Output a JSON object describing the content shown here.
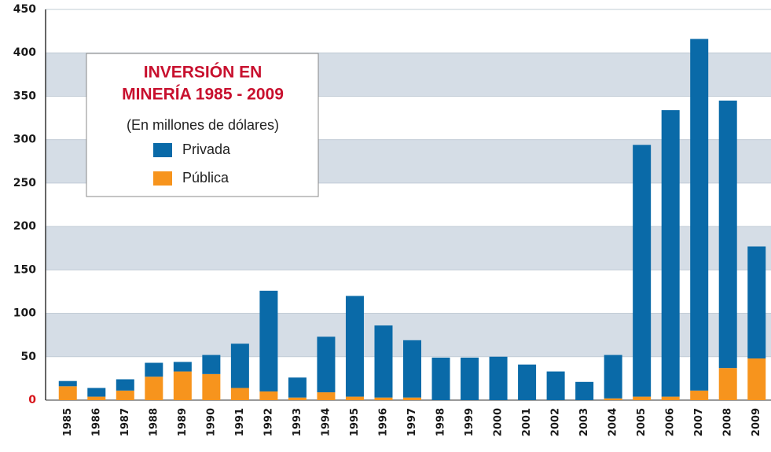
{
  "chart_data": {
    "type": "bar",
    "stacked": true,
    "title_lines": [
      "INVERSIÓN EN",
      "MINERÍA 1985 - 2009"
    ],
    "subtitle": "(En millones de dólares)",
    "categories": [
      "1985",
      "1986",
      "1987",
      "1988",
      "1989",
      "1990",
      "1991",
      "1992",
      "1993",
      "1994",
      "1995",
      "1996",
      "1997",
      "1998",
      "1999",
      "2000",
      "2001",
      "2002",
      "2003",
      "2004",
      "2005",
      "2006",
      "2007",
      "2008",
      "2009"
    ],
    "series": [
      {
        "name": "Pública",
        "color": "#f7941d",
        "values": [
          16,
          4,
          11,
          27,
          33,
          30,
          14,
          10,
          3,
          9,
          4,
          3,
          3,
          0,
          0,
          0,
          0,
          0,
          0,
          2,
          4,
          4,
          11,
          37,
          48
        ]
      },
      {
        "name": "Privada",
        "color": "#0a6aa8",
        "values": [
          6,
          10,
          13,
          16,
          11,
          22,
          51,
          116,
          23,
          64,
          116,
          83,
          66,
          49,
          49,
          50,
          41,
          33,
          21,
          50,
          290,
          330,
          405,
          308,
          129
        ]
      }
    ],
    "ylim": [
      0,
      450
    ],
    "yticks": [
      0,
      50,
      100,
      150,
      200,
      250,
      300,
      350,
      400,
      450
    ],
    "grid": true
  }
}
